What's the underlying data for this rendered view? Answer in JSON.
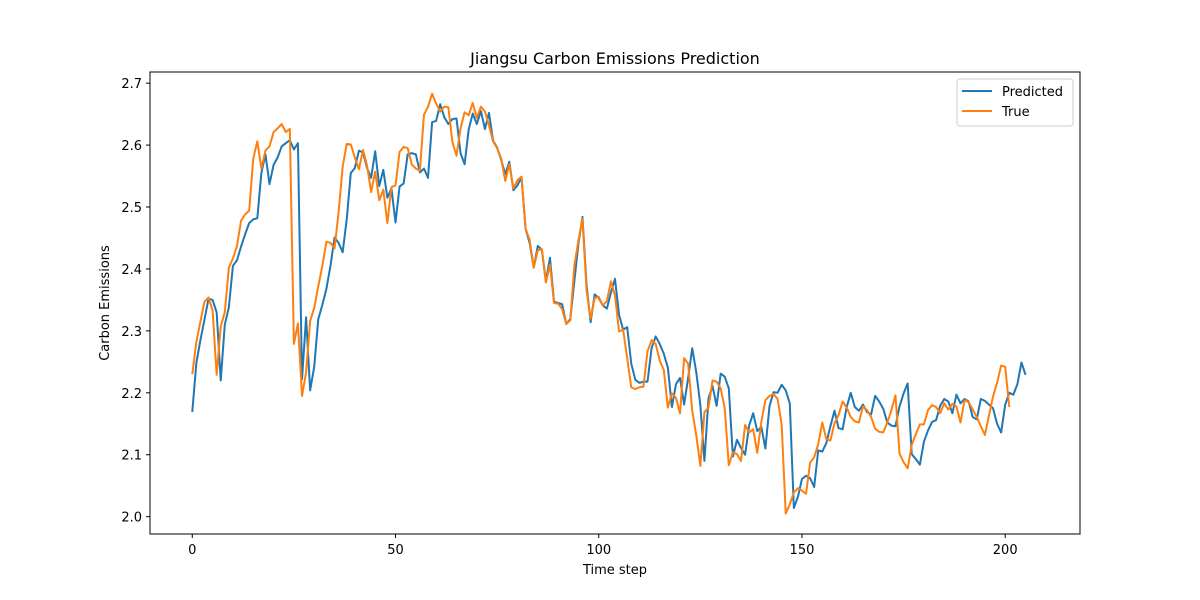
{
  "chart_data": {
    "type": "line",
    "title": "Jiangsu Carbon Emissions Prediction",
    "xlabel": "Time step",
    "ylabel": "Carbon Emissions",
    "xlim": [
      -10.4,
      218.4
    ],
    "ylim": [
      1.972,
      2.718
    ],
    "xticks": [
      0,
      50,
      100,
      150,
      200
    ],
    "yticks": [
      2.0,
      2.1,
      2.2,
      2.3,
      2.4,
      2.5,
      2.6,
      2.7
    ],
    "grid": false,
    "legend_position": "top-right",
    "series": [
      {
        "name": "Predicted",
        "color": "#1f77b4",
        "values": [
          2.169,
          2.248,
          2.285,
          2.318,
          2.352,
          2.35,
          2.33,
          2.22,
          2.31,
          2.338,
          2.405,
          2.414,
          2.436,
          2.456,
          2.474,
          2.48,
          2.482,
          2.555,
          2.585,
          2.537,
          2.568,
          2.58,
          2.598,
          2.603,
          2.608,
          2.593,
          2.603,
          2.222,
          2.322,
          2.204,
          2.242,
          2.319,
          2.342,
          2.368,
          2.405,
          2.451,
          2.442,
          2.427,
          2.48,
          2.555,
          2.563,
          2.591,
          2.588,
          2.563,
          2.547,
          2.59,
          2.534,
          2.56,
          2.515,
          2.53,
          2.475,
          2.533,
          2.538,
          2.585,
          2.587,
          2.585,
          2.556,
          2.562,
          2.547,
          2.637,
          2.639,
          2.666,
          2.645,
          2.634,
          2.642,
          2.643,
          2.587,
          2.569,
          2.625,
          2.651,
          2.634,
          2.655,
          2.626,
          2.652,
          2.607,
          2.596,
          2.576,
          2.553,
          2.573,
          2.527,
          2.535,
          2.548,
          2.465,
          2.442,
          2.402,
          2.437,
          2.431,
          2.38,
          2.418,
          2.347,
          2.345,
          2.343,
          2.311,
          2.319,
          2.38,
          2.441,
          2.484,
          2.374,
          2.314,
          2.359,
          2.353,
          2.341,
          2.336,
          2.362,
          2.384,
          2.326,
          2.302,
          2.306,
          2.247,
          2.221,
          2.216,
          2.218,
          2.218,
          2.272,
          2.291,
          2.279,
          2.263,
          2.241,
          2.177,
          2.214,
          2.224,
          2.181,
          2.224,
          2.272,
          2.233,
          2.18,
          2.09,
          2.191,
          2.211,
          2.179,
          2.231,
          2.226,
          2.207,
          2.097,
          2.124,
          2.111,
          2.1,
          2.147,
          2.167,
          2.138,
          2.145,
          2.11,
          2.178,
          2.201,
          2.2,
          2.213,
          2.204,
          2.183,
          2.014,
          2.032,
          2.061,
          2.066,
          2.062,
          2.048,
          2.107,
          2.105,
          2.119,
          2.146,
          2.171,
          2.143,
          2.141,
          2.177,
          2.2,
          2.177,
          2.171,
          2.181,
          2.169,
          2.165,
          2.195,
          2.186,
          2.174,
          2.152,
          2.147,
          2.146,
          2.178,
          2.199,
          2.215,
          2.101,
          2.093,
          2.084,
          2.121,
          2.139,
          2.153,
          2.156,
          2.179,
          2.19,
          2.186,
          2.167,
          2.197,
          2.183,
          2.19,
          2.186,
          2.161,
          2.157,
          2.19,
          2.187,
          2.181,
          2.175,
          2.15,
          2.136,
          2.181,
          2.2,
          2.197,
          2.214,
          2.249,
          2.229
        ]
      },
      {
        "name": "True",
        "color": "#ff7f0e",
        "values": [
          2.23,
          2.282,
          2.315,
          2.347,
          2.354,
          2.333,
          2.229,
          2.307,
          2.33,
          2.402,
          2.417,
          2.437,
          2.478,
          2.488,
          2.494,
          2.578,
          2.606,
          2.562,
          2.591,
          2.598,
          2.621,
          2.627,
          2.634,
          2.621,
          2.626,
          2.279,
          2.312,
          2.195,
          2.233,
          2.316,
          2.337,
          2.372,
          2.405,
          2.444,
          2.442,
          2.433,
          2.492,
          2.565,
          2.602,
          2.601,
          2.58,
          2.561,
          2.592,
          2.567,
          2.524,
          2.557,
          2.511,
          2.528,
          2.474,
          2.532,
          2.535,
          2.589,
          2.597,
          2.595,
          2.569,
          2.562,
          2.559,
          2.649,
          2.662,
          2.683,
          2.667,
          2.654,
          2.662,
          2.661,
          2.605,
          2.583,
          2.627,
          2.653,
          2.648,
          2.668,
          2.644,
          2.662,
          2.654,
          2.632,
          2.606,
          2.595,
          2.578,
          2.542,
          2.569,
          2.53,
          2.543,
          2.549,
          2.465,
          2.447,
          2.402,
          2.43,
          2.432,
          2.378,
          2.407,
          2.345,
          2.344,
          2.335,
          2.311,
          2.317,
          2.405,
          2.446,
          2.481,
          2.365,
          2.32,
          2.353,
          2.355,
          2.341,
          2.348,
          2.38,
          2.357,
          2.299,
          2.302,
          2.256,
          2.209,
          2.206,
          2.209,
          2.21,
          2.267,
          2.285,
          2.279,
          2.252,
          2.237,
          2.176,
          2.199,
          2.192,
          2.167,
          2.256,
          2.247,
          2.171,
          2.131,
          2.082,
          2.169,
          2.176,
          2.22,
          2.218,
          2.207,
          2.175,
          2.083,
          2.104,
          2.101,
          2.09,
          2.148,
          2.136,
          2.141,
          2.103,
          2.153,
          2.188,
          2.195,
          2.198,
          2.19,
          2.149,
          2.005,
          2.02,
          2.039,
          2.046,
          2.042,
          2.037,
          2.087,
          2.096,
          2.117,
          2.152,
          2.125,
          2.123,
          2.151,
          2.164,
          2.186,
          2.176,
          2.161,
          2.154,
          2.152,
          2.178,
          2.172,
          2.161,
          2.142,
          2.137,
          2.136,
          2.152,
          2.172,
          2.196,
          2.102,
          2.088,
          2.078,
          2.116,
          2.133,
          2.149,
          2.149,
          2.172,
          2.18,
          2.177,
          2.167,
          2.183,
          2.173,
          2.182,
          2.178,
          2.152,
          2.188,
          2.185,
          2.173,
          2.161,
          2.146,
          2.132,
          2.163,
          2.194,
          2.216,
          2.244,
          2.242,
          2.177
        ]
      }
    ]
  }
}
